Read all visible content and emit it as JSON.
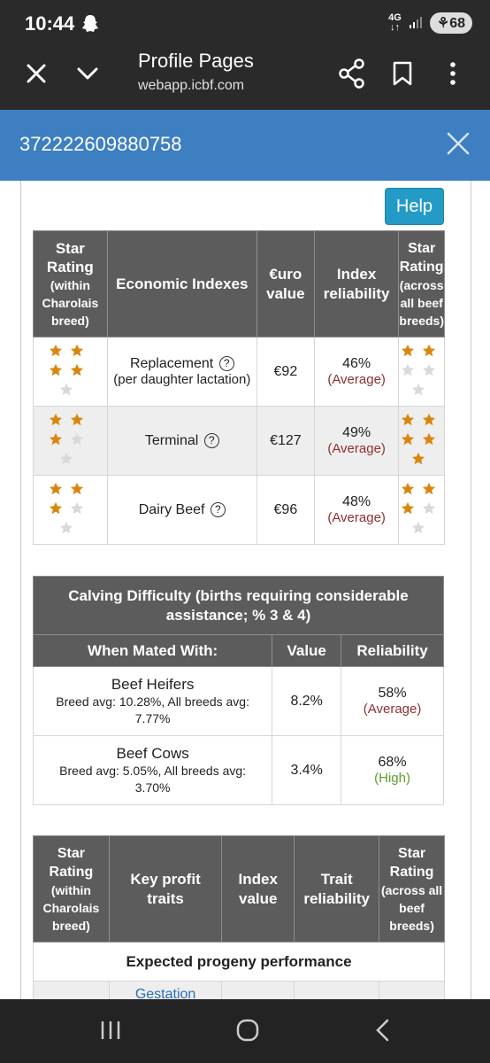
{
  "status_bar": {
    "time": "10:44",
    "network_top": "4G",
    "network_bottom": "↓↑",
    "battery": "68"
  },
  "browser": {
    "title": "Profile Pages",
    "url": "webapp.icbf.com"
  },
  "modal": {
    "title": "372222609880758"
  },
  "help_label": "Help",
  "economic_table": {
    "headers": {
      "star_within": "Star Rating (within Charolais breed)",
      "indexes": "Economic Indexes",
      "euro": "€uro value",
      "reliability": "Index reliability",
      "star_across": "Star Rating (across all beef breeds)"
    },
    "rows": [
      {
        "name": "Replacement",
        "sub": "(per daughter lactation)",
        "value": "€92",
        "reliability": "46%",
        "reliability_note": "(Average)",
        "stars_within": 4,
        "stars_across": 2
      },
      {
        "name": "Terminal",
        "sub": "",
        "value": "€127",
        "reliability": "49%",
        "reliability_note": "(Average)",
        "stars_within": 3,
        "stars_across": 5
      },
      {
        "name": "Dairy Beef",
        "sub": "",
        "value": "€96",
        "reliability": "48%",
        "reliability_note": "(Average)",
        "stars_within": 3,
        "stars_across": 3
      }
    ]
  },
  "calving_table": {
    "title": "Calving Difficulty (births requiring considerable assistance; % 3 & 4)",
    "headers": {
      "mated": "When Mated With:",
      "value": "Value",
      "reliability": "Reliability"
    },
    "rows": [
      {
        "name": "Beef Heifers",
        "sub": "Breed avg: 10.28%, All breeds avg: 7.77%",
        "value": "8.2%",
        "reliability": "58%",
        "reliability_note": "(Average)",
        "note_color": "#8e3030"
      },
      {
        "name": "Beef Cows",
        "sub": "Breed avg: 5.05%, All breeds avg: 3.70%",
        "value": "3.4%",
        "reliability": "68%",
        "reliability_note": "(High)",
        "note_color": "#5b9e2b"
      }
    ]
  },
  "profit_table": {
    "headers": {
      "star_within": "Star Rating (within Charolais breed)",
      "traits": "Key profit traits",
      "index": "Index value",
      "reliability": "Trait reliability",
      "star_across": "Star Rating (across all beef breeds)"
    },
    "section_label": "Expected progeny performance",
    "first_trait": "Gestation"
  },
  "colors": {
    "star_filled": "#d9860f",
    "star_empty": "#d9d9d9",
    "header_bg": "#5c5c5c",
    "modal_blue": "#3d7fc1",
    "help_blue": "#239bc6"
  }
}
